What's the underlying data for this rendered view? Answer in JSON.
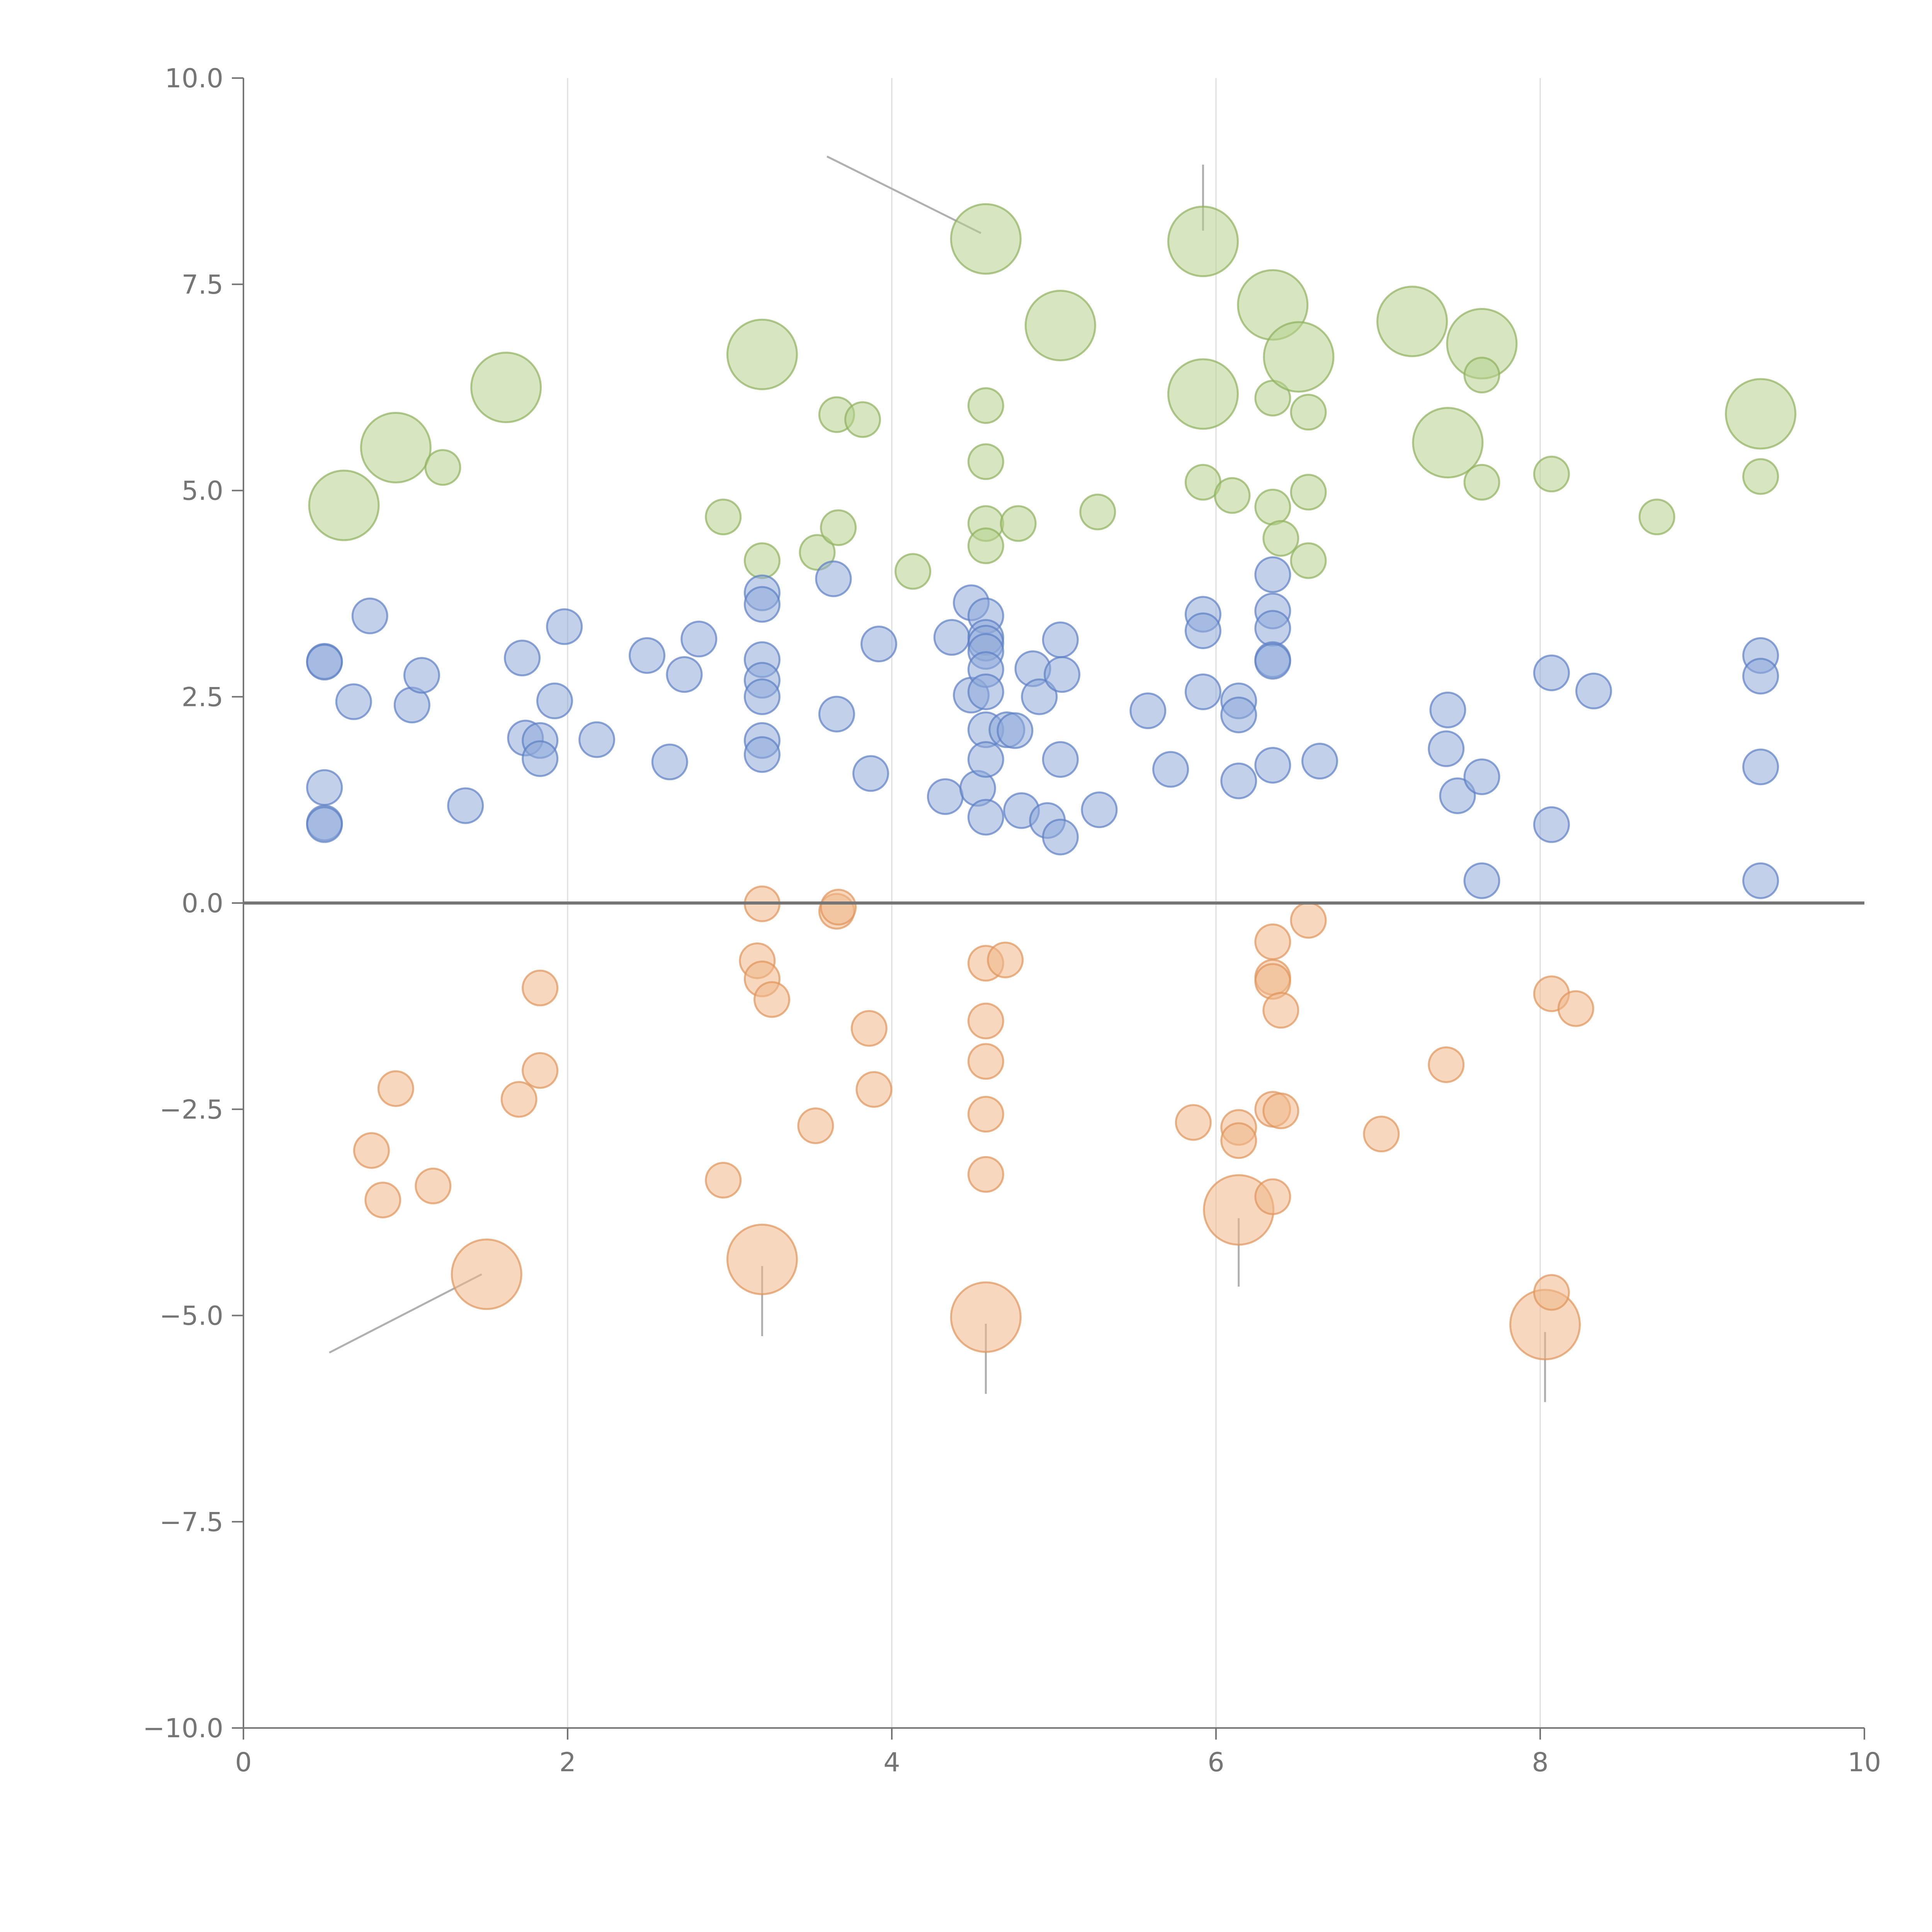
{
  "chart_data": {
    "type": "scatter",
    "title": "",
    "xlabel": "",
    "ylabel": "",
    "xlim": [
      0,
      10
    ],
    "ylim": [
      -10,
      10
    ],
    "x_ticks": [
      0,
      2,
      4,
      6,
      8,
      10
    ],
    "y_ticks": [
      -10,
      -7.5,
      -5,
      -2.5,
      0,
      2.5,
      5,
      7.5,
      10
    ],
    "x_tick_labels": [
      "0",
      "2",
      "4",
      "6",
      "8",
      "10"
    ],
    "y_tick_labels": [
      "−10.0",
      "−7.5",
      "−5.0",
      "−2.5",
      "0.0",
      "2.5",
      "5.0",
      "7.5",
      "10.0"
    ],
    "grid": "vertical",
    "zero_line": true,
    "legend": "none",
    "colors": {
      "green": "#b7d18e",
      "green_edge": "#8fb05c",
      "blue": "#8fa9d8",
      "blue_edge": "#5b7fc4",
      "orange": "#f0b88a",
      "orange_edge": "#e0945a",
      "axis": "#757575",
      "grid": "#dddddd",
      "leader": "#b0b0b0"
    },
    "series": [
      {
        "color_key": "green",
        "points": [
          [
            0.62,
            4.82,
            3
          ],
          [
            0.94,
            5.52,
            3
          ],
          [
            1.23,
            5.28,
            1
          ],
          [
            1.62,
            6.25,
            3
          ],
          [
            2.96,
            4.68,
            1
          ],
          [
            3.2,
            6.65,
            3
          ],
          [
            3.2,
            4.15,
            1
          ],
          [
            3.54,
            4.25,
            1
          ],
          [
            3.66,
            5.92,
            1
          ],
          [
            3.67,
            4.55,
            1
          ],
          [
            3.82,
            5.86,
            1
          ],
          [
            4.13,
            4.02,
            1
          ],
          [
            4.58,
            8.05,
            3
          ],
          [
            4.58,
            6.03,
            1
          ],
          [
            4.58,
            5.35,
            1
          ],
          [
            4.58,
            4.6,
            1
          ],
          [
            4.58,
            4.33,
            1
          ],
          [
            4.78,
            4.6,
            1
          ],
          [
            5.04,
            7.0,
            3
          ],
          [
            5.27,
            4.74,
            1
          ],
          [
            5.92,
            8.02,
            3
          ],
          [
            5.92,
            6.17,
            3
          ],
          [
            5.92,
            5.1,
            1
          ],
          [
            6.1,
            4.94,
            1
          ],
          [
            6.35,
            7.25,
            3
          ],
          [
            6.35,
            6.12,
            1
          ],
          [
            6.35,
            4.8,
            1
          ],
          [
            6.4,
            4.42,
            1
          ],
          [
            6.51,
            6.62,
            3
          ],
          [
            6.57,
            5.95,
            1
          ],
          [
            6.57,
            4.98,
            1
          ],
          [
            6.57,
            4.15,
            1
          ],
          [
            7.21,
            7.05,
            3
          ],
          [
            7.43,
            5.58,
            3
          ],
          [
            7.64,
            6.78,
            3
          ],
          [
            7.64,
            6.4,
            1
          ],
          [
            7.64,
            5.1,
            1
          ],
          [
            8.07,
            5.2,
            1
          ],
          [
            8.72,
            4.68,
            1
          ],
          [
            9.36,
            5.93,
            3
          ],
          [
            9.36,
            5.17,
            1
          ]
        ]
      },
      {
        "color_key": "blue",
        "points": [
          [
            0.5,
            2.93,
            1
          ],
          [
            0.5,
            2.92,
            1
          ],
          [
            0.5,
            1.4,
            1
          ],
          [
            0.5,
            0.97,
            1
          ],
          [
            0.5,
            0.95,
            1
          ],
          [
            0.68,
            2.44,
            1
          ],
          [
            0.78,
            3.48,
            1
          ],
          [
            1.04,
            2.4,
            1
          ],
          [
            1.1,
            2.76,
            1
          ],
          [
            1.37,
            1.18,
            1
          ],
          [
            1.72,
            2.97,
            1
          ],
          [
            1.74,
            2.0,
            1
          ],
          [
            1.83,
            1.97,
            1
          ],
          [
            1.83,
            1.75,
            1
          ],
          [
            1.92,
            2.45,
            1
          ],
          [
            1.98,
            3.35,
            1
          ],
          [
            2.18,
            1.98,
            1
          ],
          [
            2.49,
            3.0,
            1
          ],
          [
            2.63,
            1.71,
            1
          ],
          [
            2.72,
            2.77,
            1
          ],
          [
            2.81,
            3.2,
            1
          ],
          [
            3.2,
            3.76,
            1
          ],
          [
            3.2,
            3.62,
            1
          ],
          [
            3.2,
            2.95,
            1
          ],
          [
            3.2,
            2.7,
            1
          ],
          [
            3.2,
            2.5,
            1
          ],
          [
            3.2,
            1.97,
            1
          ],
          [
            3.2,
            1.8,
            1
          ],
          [
            3.64,
            3.93,
            1
          ],
          [
            3.66,
            2.29,
            1
          ],
          [
            3.87,
            1.57,
            1
          ],
          [
            3.92,
            3.14,
            1
          ],
          [
            4.33,
            1.29,
            1
          ],
          [
            4.37,
            3.22,
            1
          ],
          [
            4.49,
            3.64,
            1
          ],
          [
            4.49,
            2.52,
            1
          ],
          [
            4.53,
            1.39,
            1
          ],
          [
            4.58,
            3.48,
            1
          ],
          [
            4.58,
            3.22,
            1
          ],
          [
            4.58,
            3.15,
            1
          ],
          [
            4.58,
            3.05,
            1
          ],
          [
            4.58,
            2.83,
            1
          ],
          [
            4.58,
            2.56,
            1
          ],
          [
            4.58,
            2.1,
            1
          ],
          [
            4.58,
            1.74,
            1
          ],
          [
            4.58,
            1.04,
            1
          ],
          [
            4.71,
            2.1,
            1
          ],
          [
            4.76,
            2.09,
            1
          ],
          [
            4.8,
            1.12,
            1
          ],
          [
            4.87,
            2.84,
            1
          ],
          [
            4.91,
            2.5,
            1
          ],
          [
            4.96,
            1.0,
            1
          ],
          [
            5.04,
            3.19,
            1
          ],
          [
            5.04,
            1.74,
            1
          ],
          [
            5.04,
            0.8,
            1
          ],
          [
            5.05,
            2.77,
            1
          ],
          [
            5.28,
            1.13,
            1
          ],
          [
            5.58,
            2.33,
            1
          ],
          [
            5.72,
            1.62,
            1
          ],
          [
            5.92,
            3.5,
            1
          ],
          [
            5.92,
            3.3,
            1
          ],
          [
            5.92,
            2.56,
            1
          ],
          [
            6.14,
            2.45,
            1
          ],
          [
            6.14,
            2.28,
            1
          ],
          [
            6.14,
            1.48,
            1
          ],
          [
            6.35,
            3.98,
            1
          ],
          [
            6.35,
            3.54,
            1
          ],
          [
            6.35,
            3.33,
            1
          ],
          [
            6.35,
            2.95,
            1
          ],
          [
            6.35,
            2.93,
            1
          ],
          [
            6.35,
            1.67,
            1
          ],
          [
            6.64,
            1.72,
            1
          ],
          [
            7.42,
            1.87,
            1
          ],
          [
            7.43,
            2.34,
            1
          ],
          [
            7.49,
            1.3,
            1
          ],
          [
            7.64,
            1.53,
            1
          ],
          [
            7.64,
            0.27,
            1
          ],
          [
            8.07,
            2.79,
            1
          ],
          [
            8.07,
            0.95,
            1
          ],
          [
            8.33,
            2.57,
            1
          ],
          [
            9.36,
            3.0,
            1
          ],
          [
            9.36,
            2.75,
            1
          ],
          [
            9.36,
            1.65,
            1
          ],
          [
            9.36,
            0.27,
            1
          ]
        ]
      },
      {
        "color_key": "orange",
        "points": [
          [
            0.79,
            -3.0,
            1
          ],
          [
            0.86,
            -3.6,
            1
          ],
          [
            0.94,
            -2.25,
            1
          ],
          [
            1.17,
            -3.43,
            1
          ],
          [
            1.5,
            -4.5,
            3
          ],
          [
            1.7,
            -2.38,
            1
          ],
          [
            1.83,
            -1.03,
            1
          ],
          [
            1.83,
            -2.03,
            1
          ],
          [
            2.96,
            -3.36,
            1
          ],
          [
            3.17,
            -0.7,
            1
          ],
          [
            3.2,
            -0.01,
            1
          ],
          [
            3.2,
            -0.92,
            1
          ],
          [
            3.2,
            -4.32,
            3
          ],
          [
            3.26,
            -1.17,
            1
          ],
          [
            3.53,
            -2.7,
            1
          ],
          [
            3.66,
            -0.1,
            1
          ],
          [
            3.67,
            -0.05,
            1
          ],
          [
            3.86,
            -1.52,
            1
          ],
          [
            3.89,
            -2.26,
            1
          ],
          [
            4.58,
            -0.73,
            1
          ],
          [
            4.58,
            -1.43,
            1
          ],
          [
            4.58,
            -1.92,
            1
          ],
          [
            4.58,
            -2.56,
            1
          ],
          [
            4.58,
            -3.29,
            1
          ],
          [
            4.58,
            -5.02,
            3
          ],
          [
            4.7,
            -0.69,
            1
          ],
          [
            5.86,
            -2.66,
            1
          ],
          [
            6.14,
            -2.72,
            1
          ],
          [
            6.14,
            -2.88,
            1
          ],
          [
            6.14,
            -3.72,
            3
          ],
          [
            6.35,
            -0.47,
            1
          ],
          [
            6.35,
            -0.9,
            1
          ],
          [
            6.35,
            -0.95,
            1
          ],
          [
            6.35,
            -2.5,
            1
          ],
          [
            6.35,
            -3.56,
            1
          ],
          [
            6.4,
            -1.3,
            1
          ],
          [
            6.4,
            -2.52,
            1
          ],
          [
            6.57,
            -0.21,
            1
          ],
          [
            7.02,
            -2.8,
            1
          ],
          [
            7.42,
            -1.96,
            1
          ],
          [
            8.03,
            -5.11,
            3
          ],
          [
            8.07,
            -1.1,
            1
          ],
          [
            8.07,
            -4.72,
            1
          ],
          [
            8.22,
            -1.28,
            1
          ]
        ]
      }
    ],
    "leaders": [
      [
        [
          3.6,
          9.05
        ],
        [
          4.55,
          8.12
        ]
      ],
      [
        [
          5.92,
          8.95
        ],
        [
          5.92,
          8.15
        ]
      ],
      [
        [
          1.47,
          -4.5
        ],
        [
          0.53,
          -5.45
        ]
      ],
      [
        [
          3.2,
          -4.4
        ],
        [
          3.2,
          -5.25
        ]
      ],
      [
        [
          4.58,
          -5.1
        ],
        [
          4.58,
          -5.95
        ]
      ],
      [
        [
          6.14,
          -3.82
        ],
        [
          6.14,
          -4.65
        ]
      ],
      [
        [
          8.03,
          -5.2
        ],
        [
          8.03,
          -6.05
        ]
      ]
    ]
  }
}
